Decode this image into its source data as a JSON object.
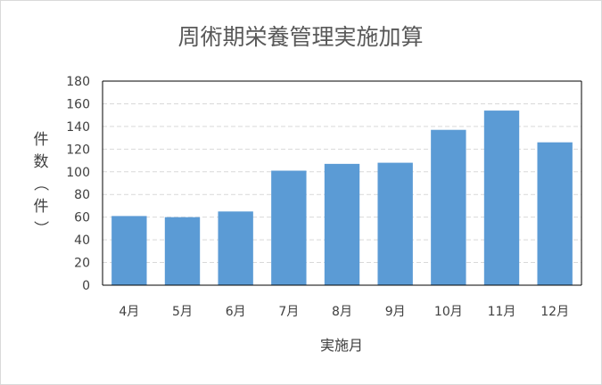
{
  "chart_data": {
    "type": "bar",
    "title": "周術期栄養管理実施加算",
    "xlabel": "実施月",
    "ylabel": "件数（件）",
    "categories": [
      "4月",
      "5月",
      "6月",
      "7月",
      "8月",
      "9月",
      "10月",
      "11月",
      "12月"
    ],
    "values": [
      61,
      60,
      65,
      101,
      107,
      108,
      137,
      154,
      126
    ],
    "ylim": [
      0,
      180
    ],
    "yticks": [
      0,
      20,
      40,
      60,
      80,
      100,
      120,
      140,
      160,
      180
    ],
    "grid": true,
    "legend": "none",
    "colors": {
      "bar": "#5b9bd5",
      "grid": "#d9d9d9",
      "axis": "#000000",
      "frame": "#d9d9d9"
    }
  }
}
